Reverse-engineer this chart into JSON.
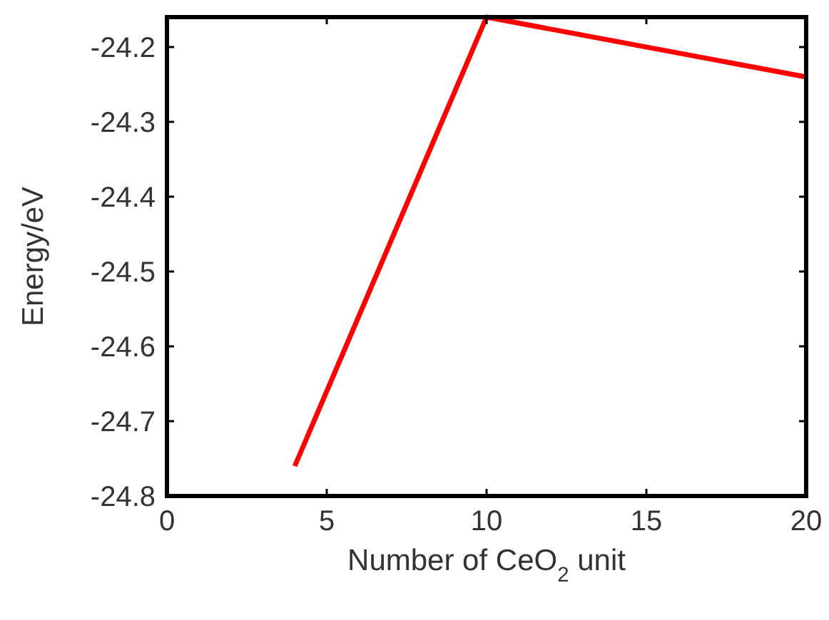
{
  "chart_data": {
    "type": "line",
    "xlabel": "Number of CeO$_{2}$ unit",
    "ylabel": "Energy/eV",
    "x": [
      4,
      10,
      20
    ],
    "series": [
      {
        "color": "#ff0000",
        "values": [
          -24.76,
          -24.16,
          -24.24
        ]
      }
    ],
    "xlim": [
      0,
      20
    ],
    "xticks": [
      0,
      5,
      10,
      15,
      20
    ],
    "ylim": [
      -24.8,
      -24.16
    ],
    "yticks": [
      -24.8,
      -24.7,
      -24.6,
      -24.5,
      -24.4,
      -24.3,
      -24.2
    ],
    "grid": false,
    "marker": "none",
    "line_style": "solid"
  }
}
